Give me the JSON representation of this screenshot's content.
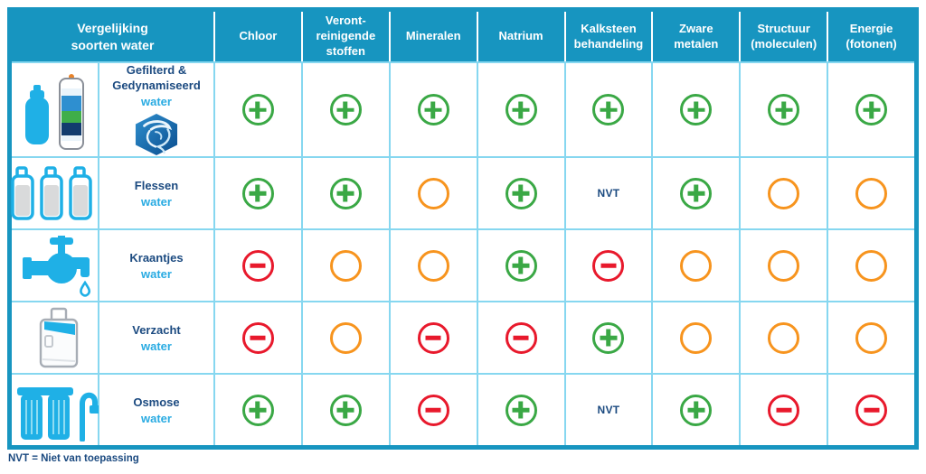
{
  "colors": {
    "header_teal": "#1795c0",
    "grid_line": "#86d7f0",
    "navy_text": "#1b4a80",
    "cyan_accent": "#29abe2",
    "icon_cyan": "#1fb0e6",
    "green_plus": "#3aa845",
    "orange_neutral": "#f7941e",
    "red_minus": "#e8192c"
  },
  "header": {
    "title": "Vergelijking\nsoorten water",
    "columns": [
      "Chloor",
      "Veront-\nreinigende\nstoffen",
      "Mineralen",
      "Natrium",
      "Kalksteen\nbehandeling",
      "Zware\nmetalen",
      "Structuur\n(moleculen)",
      "Energie\n(fotonen)"
    ]
  },
  "nvt_label": "NVT",
  "rows": [
    {
      "icon": "filter-bottle",
      "name": "Gefilterd &\nGedynamiseerd",
      "sub": "water",
      "badge": "dynamizer-swirl",
      "values": [
        "plus",
        "plus",
        "plus",
        "plus",
        "plus",
        "plus",
        "plus",
        "plus"
      ]
    },
    {
      "icon": "bottles",
      "name": "Flessen",
      "sub": "water",
      "values": [
        "plus",
        "plus",
        "neutral",
        "plus",
        "nvt",
        "plus",
        "neutral",
        "neutral"
      ]
    },
    {
      "icon": "tap",
      "name": "Kraantjes",
      "sub": "water",
      "values": [
        "minus",
        "neutral",
        "neutral",
        "plus",
        "minus",
        "neutral",
        "neutral",
        "neutral"
      ]
    },
    {
      "icon": "softener",
      "name": "Verzacht",
      "sub": "water",
      "values": [
        "minus",
        "neutral",
        "minus",
        "minus",
        "plus",
        "neutral",
        "neutral",
        "neutral"
      ]
    },
    {
      "icon": "osmosis",
      "name": "Osmose",
      "sub": "water",
      "values": [
        "plus",
        "plus",
        "minus",
        "plus",
        "nvt",
        "plus",
        "minus",
        "minus"
      ]
    }
  ],
  "page": {
    "footnote": "NVT = Niet van toepassing"
  },
  "chart_data": {
    "type": "table",
    "title": "Vergelijking soorten water",
    "columns": [
      "Chloor",
      "Verontreinigende stoffen",
      "Mineralen",
      "Natrium",
      "Kalksteen behandeling",
      "Zware metalen",
      "Structuur (moleculen)",
      "Energie (fotonen)"
    ],
    "rows": [
      {
        "label": "Gefilterd & Gedynamiseerd water",
        "values": [
          "plus",
          "plus",
          "plus",
          "plus",
          "plus",
          "plus",
          "plus",
          "plus"
        ]
      },
      {
        "label": "Flessen water",
        "values": [
          "plus",
          "plus",
          "neutral",
          "plus",
          "NVT",
          "plus",
          "neutral",
          "neutral"
        ]
      },
      {
        "label": "Kraantjes water",
        "values": [
          "minus",
          "neutral",
          "neutral",
          "plus",
          "minus",
          "neutral",
          "neutral",
          "neutral"
        ]
      },
      {
        "label": "Verzacht water",
        "values": [
          "minus",
          "neutral",
          "minus",
          "minus",
          "plus",
          "neutral",
          "neutral",
          "neutral"
        ]
      },
      {
        "label": "Osmose water",
        "values": [
          "plus",
          "plus",
          "minus",
          "plus",
          "NVT",
          "plus",
          "minus",
          "minus"
        ]
      }
    ],
    "symbols": {
      "plus": "green-plus-circle",
      "minus": "red-minus-circle",
      "neutral": "orange-empty-circle",
      "nvt": "NVT"
    },
    "footnote": "NVT = Niet van toepassing",
    "legend_position": "none",
    "grid": true
  }
}
